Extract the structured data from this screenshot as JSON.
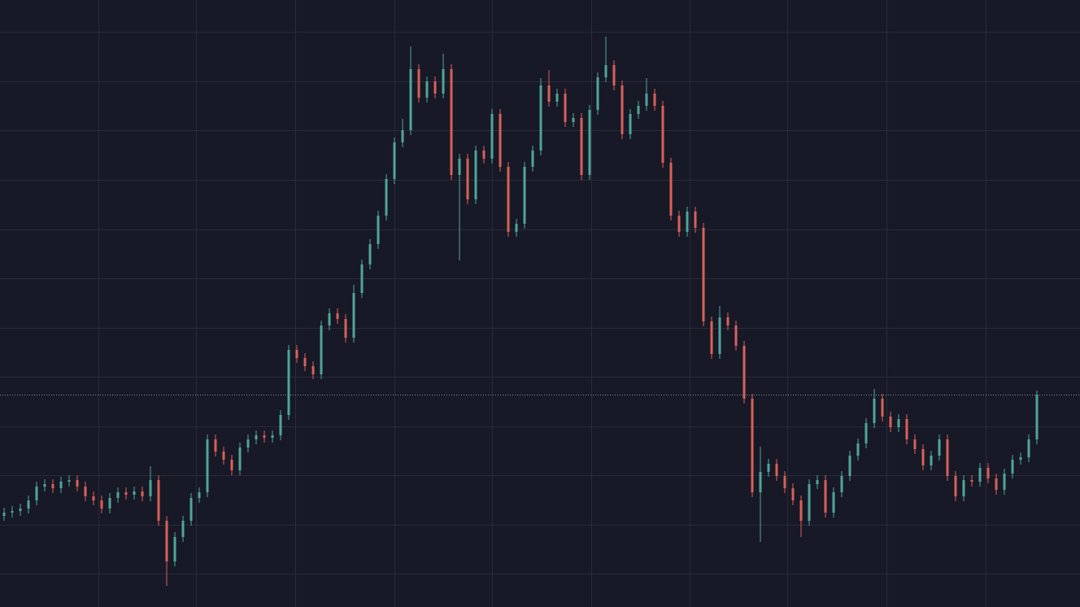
{
  "chart_data": {
    "type": "candlestick",
    "categories": [
      null,
      null,
      null,
      null,
      null,
      null,
      null,
      null,
      null,
      null,
      null,
      null,
      null,
      null,
      null,
      null,
      null,
      null,
      null,
      null,
      null,
      null,
      null,
      null,
      null,
      null,
      null,
      null,
      null,
      null,
      null,
      null,
      null,
      null,
      null,
      null,
      null,
      null,
      null,
      null,
      null,
      null,
      null,
      null,
      null,
      null,
      null,
      null,
      null,
      null,
      null,
      null,
      null,
      null,
      null,
      null,
      null,
      null,
      null,
      null,
      null,
      null,
      null,
      null,
      null,
      null,
      null,
      null,
      null,
      null,
      null,
      null,
      null,
      null,
      null,
      null,
      null,
      null,
      null,
      null,
      null,
      null,
      null,
      null,
      null,
      null,
      null,
      null,
      null,
      null,
      null,
      null,
      null,
      null,
      null,
      null,
      null,
      null,
      null,
      null,
      null,
      null,
      null,
      null,
      null,
      null,
      null,
      null,
      null,
      null,
      null,
      null,
      null,
      null,
      null,
      null,
      null,
      null,
      null,
      null,
      null,
      null,
      null,
      null,
      null,
      null,
      null,
      null
    ],
    "open": [
      112,
      116,
      118,
      121,
      131,
      148,
      151,
      146,
      154,
      156,
      148,
      136,
      131,
      121,
      134,
      141,
      138,
      142,
      136,
      156,
      106,
      56,
      86,
      106,
      134,
      141,
      206,
      191,
      181,
      168,
      196,
      206,
      211,
      208,
      211,
      236,
      316,
      306,
      296,
      286,
      346,
      361,
      354,
      331,
      386,
      421,
      446,
      481,
      526,
      571,
      586,
      661,
      626,
      646,
      631,
      661,
      531,
      551,
      501,
      561,
      551,
      606,
      541,
      461,
      471,
      541,
      561,
      641,
      621,
      631,
      596,
      601,
      531,
      611,
      651,
      666,
      641,
      581,
      606,
      616,
      631,
      616,
      546,
      481,
      461,
      486,
      466,
      351,
      311,
      356,
      346,
      321,
      256,
      141,
      166,
      176,
      161,
      146,
      131,
      106,
      151,
      156,
      116,
      141,
      161,
      186,
      201,
      226,
      256,
      234,
      221,
      231,
      206,
      194,
      174,
      186,
      206,
      161,
      136,
      156,
      154,
      171,
      158,
      144,
      164,
      181,
      184,
      206
    ],
    "high": [
      122,
      124,
      127,
      137,
      154,
      157,
      157,
      160,
      162,
      162,
      154,
      142,
      137,
      140,
      147,
      147,
      148,
      148,
      173,
      162,
      112,
      92,
      112,
      140,
      147,
      212,
      212,
      197,
      187,
      202,
      212,
      217,
      217,
      217,
      242,
      322,
      322,
      312,
      302,
      352,
      367,
      367,
      360,
      396,
      427,
      452,
      487,
      532,
      577,
      600,
      689,
      667,
      652,
      652,
      680,
      667,
      557,
      557,
      567,
      567,
      612,
      612,
      547,
      477,
      547,
      567,
      650,
      660,
      637,
      637,
      607,
      607,
      617,
      657,
      701,
      672,
      647,
      612,
      622,
      650,
      637,
      622,
      552,
      487,
      492,
      492,
      472,
      357,
      370,
      362,
      352,
      327,
      262,
      197,
      182,
      182,
      167,
      152,
      137,
      157,
      162,
      162,
      147,
      167,
      192,
      207,
      232,
      268,
      262,
      240,
      237,
      237,
      212,
      200,
      192,
      212,
      212,
      167,
      162,
      162,
      177,
      177,
      164,
      170,
      187,
      190,
      212,
      266
    ],
    "low": [
      106,
      110,
      112,
      115,
      125,
      142,
      140,
      140,
      148,
      142,
      130,
      125,
      115,
      115,
      128,
      132,
      132,
      130,
      130,
      100,
      26,
      50,
      80,
      100,
      128,
      135,
      185,
      175,
      162,
      162,
      190,
      200,
      202,
      202,
      205,
      230,
      300,
      290,
      280,
      280,
      340,
      348,
      325,
      325,
      380,
      415,
      440,
      475,
      520,
      565,
      580,
      620,
      620,
      625,
      625,
      525,
      426,
      495,
      495,
      545,
      545,
      535,
      455,
      455,
      465,
      535,
      555,
      615,
      615,
      590,
      590,
      525,
      525,
      605,
      645,
      635,
      575,
      575,
      600,
      610,
      610,
      540,
      475,
      455,
      455,
      460,
      345,
      305,
      305,
      340,
      315,
      250,
      135,
      80,
      160,
      155,
      140,
      125,
      86,
      100,
      145,
      110,
      110,
      135,
      155,
      180,
      195,
      220,
      228,
      215,
      215,
      200,
      188,
      168,
      168,
      180,
      155,
      130,
      130,
      148,
      148,
      152,
      138,
      138,
      158,
      175,
      178,
      200
    ],
    "close": [
      116,
      118,
      121,
      131,
      148,
      151,
      146,
      154,
      156,
      148,
      136,
      131,
      121,
      134,
      141,
      138,
      142,
      136,
      156,
      106,
      56,
      86,
      106,
      134,
      141,
      206,
      191,
      181,
      168,
      196,
      206,
      211,
      208,
      211,
      236,
      316,
      306,
      296,
      286,
      346,
      361,
      354,
      331,
      386,
      421,
      446,
      481,
      526,
      571,
      586,
      661,
      626,
      646,
      631,
      661,
      531,
      551,
      501,
      561,
      551,
      606,
      541,
      461,
      471,
      541,
      561,
      641,
      621,
      631,
      596,
      601,
      531,
      611,
      651,
      666,
      641,
      581,
      606,
      616,
      631,
      616,
      546,
      481,
      461,
      486,
      466,
      351,
      311,
      356,
      346,
      321,
      256,
      141,
      166,
      176,
      161,
      146,
      131,
      106,
      151,
      156,
      116,
      141,
      161,
      186,
      201,
      226,
      256,
      234,
      221,
      231,
      206,
      194,
      174,
      186,
      206,
      161,
      136,
      156,
      154,
      171,
      158,
      144,
      164,
      181,
      184,
      206,
      261
    ],
    "up_color": "#4fa59a",
    "down_color": "#d7615a",
    "ylim": [
      0,
      746
    ],
    "yticks": [
      707,
      646,
      586,
      525,
      464,
      404,
      343,
      283,
      222,
      162,
      101,
      41
    ],
    "xticks": [
      11.6,
      23.6,
      35.8,
      48,
      60,
      72.2,
      84.3,
      96.3,
      108.5,
      120.7
    ],
    "grid": true,
    "grid_color": "#2a2b3b",
    "background": "#181926",
    "price_line": 261,
    "price_line_color": "#8a8d9a"
  }
}
